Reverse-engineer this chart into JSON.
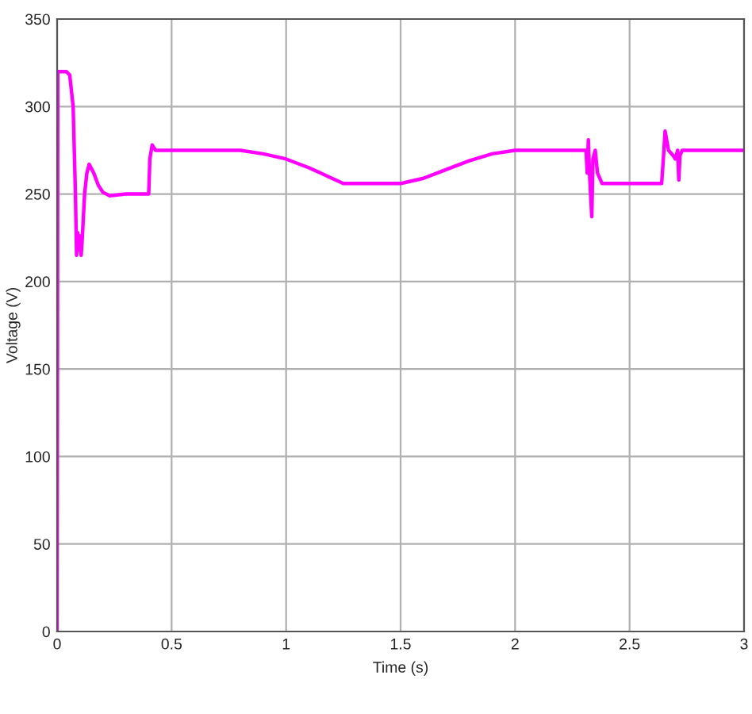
{
  "chart_data": {
    "type": "line",
    "xlabel": "Time (s)",
    "ylabel": "Voltage (V)",
    "x": [
      0,
      0.003,
      0.04,
      0.055,
      0.07,
      0.08,
      0.085,
      0.09,
      0.095,
      0.1,
      0.105,
      0.11,
      0.12,
      0.13,
      0.14,
      0.16,
      0.18,
      0.2,
      0.23,
      0.3,
      0.4,
      0.405,
      0.415,
      0.43,
      0.8,
      0.9,
      1.0,
      1.1,
      1.15,
      1.2,
      1.25,
      1.5,
      1.6,
      1.7,
      1.8,
      1.9,
      2.0,
      2.3,
      2.31,
      2.315,
      2.32,
      2.325,
      2.335,
      2.34,
      2.35,
      2.36,
      2.38,
      2.5,
      2.64,
      2.65,
      2.655,
      2.67,
      2.69,
      2.7,
      2.71,
      2.715,
      2.72,
      2.73,
      3.0
    ],
    "series": [
      {
        "color": "#ff00ff",
        "values": [
          0,
          320,
          320,
          318,
          300,
          250,
          215,
          228,
          218,
          226,
          215,
          225,
          250,
          262,
          267,
          262,
          255,
          251,
          249,
          250,
          250,
          270,
          278,
          275,
          275,
          273,
          270,
          265,
          262,
          259,
          256,
          256,
          259,
          264,
          269,
          273,
          275,
          275,
          275,
          262,
          281,
          262,
          237,
          270,
          275,
          262,
          256,
          256,
          256,
          275,
          286,
          275,
          272,
          270,
          275,
          258,
          272,
          275,
          275
        ]
      }
    ],
    "xlim": [
      0,
      3
    ],
    "ylim": [
      0,
      350
    ],
    "xticks": [
      0,
      0.5,
      1,
      1.5,
      2,
      2.5,
      3
    ],
    "yticks": [
      0,
      50,
      100,
      150,
      200,
      250,
      300,
      350
    ],
    "grid": true,
    "legend": false
  }
}
